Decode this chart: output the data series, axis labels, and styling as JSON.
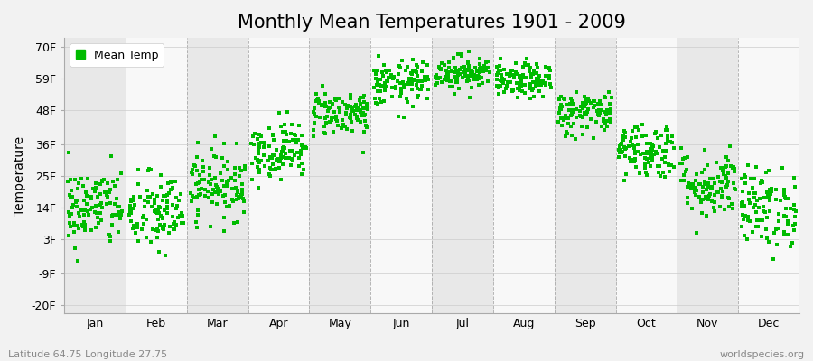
{
  "title": "Monthly Mean Temperatures 1901 - 2009",
  "ylabel": "Temperature",
  "xlabel_bottom_left": "Latitude 64.75 Longitude 27.75",
  "xlabel_bottom_right": "worldspecies.org",
  "legend_label": "Mean Temp",
  "yticks": [
    -20,
    -9,
    3,
    14,
    25,
    36,
    48,
    59,
    70
  ],
  "ytick_labels": [
    "-20F",
    "-9F",
    "3F",
    "14F",
    "25F",
    "36F",
    "48F",
    "59F",
    "70F"
  ],
  "ylim": [
    -23,
    73
  ],
  "months": [
    "Jan",
    "Feb",
    "Mar",
    "Apr",
    "May",
    "Jun",
    "Jul",
    "Aug",
    "Sep",
    "Oct",
    "Nov",
    "Dec"
  ],
  "month_means_f": [
    14,
    12,
    22,
    34,
    47,
    57,
    61,
    58,
    47,
    34,
    22,
    14
  ],
  "month_stds_f": [
    7,
    7,
    6,
    5,
    4,
    4,
    3,
    3,
    4,
    5,
    6,
    7
  ],
  "n_years": 109,
  "dot_color": "#00bb00",
  "dot_size": 6,
  "background_color": "#f2f2f2",
  "plot_bg_color": "#ffffff",
  "band_colors": [
    "#e8e8e8",
    "#f8f8f8"
  ],
  "grid_color": "#999999",
  "title_fontsize": 15,
  "axis_fontsize": 10,
  "tick_fontsize": 9,
  "legend_fontsize": 9,
  "annotation_fontsize": 8
}
